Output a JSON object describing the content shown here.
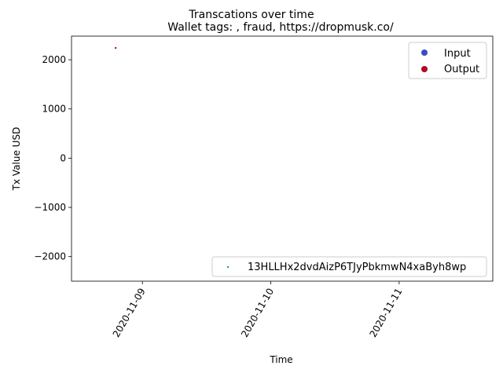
{
  "chart_data": {
    "type": "scatter",
    "suptitle": "Transcations over time",
    "title": "Wallet tags: , fraud, https://dropmusk.co/",
    "xlabel": "Time",
    "ylabel": "Tx Value USD",
    "x_type": "date",
    "xlim": [
      "2020-11-08T10:45",
      "2020-11-11T17:30"
    ],
    "ylim": [
      -2500,
      2480
    ],
    "x_ticks": [
      {
        "value": "2020-11-09T00:00",
        "label": "2020-11-09"
      },
      {
        "value": "2020-11-10T00:00",
        "label": "2020-11-10"
      },
      {
        "value": "2020-11-11T00:00",
        "label": "2020-11-11"
      }
    ],
    "y_ticks": [
      {
        "value": 2000,
        "label": "2000"
      },
      {
        "value": 1000,
        "label": "1000"
      },
      {
        "value": 0,
        "label": "0"
      },
      {
        "value": -1000,
        "label": "−1000"
      },
      {
        "value": -2000,
        "label": "−2000"
      }
    ],
    "grid": false,
    "points": [
      {
        "x": "2020-11-08T19:00",
        "y": 2240,
        "type": "Output",
        "color": "#b40426"
      }
    ],
    "legend_type": {
      "placement": "top-right",
      "items": [
        {
          "label": "Input",
          "color": "#3b4cc0"
        },
        {
          "label": "Output",
          "color": "#b40426"
        }
      ]
    },
    "legend_wallet": {
      "placement": "bottom-right",
      "items": [
        {
          "label": "13HLLHx2dvdAizP6TJyPbkmwN4xaByh8wp",
          "color": "#1a9988"
        }
      ]
    }
  }
}
